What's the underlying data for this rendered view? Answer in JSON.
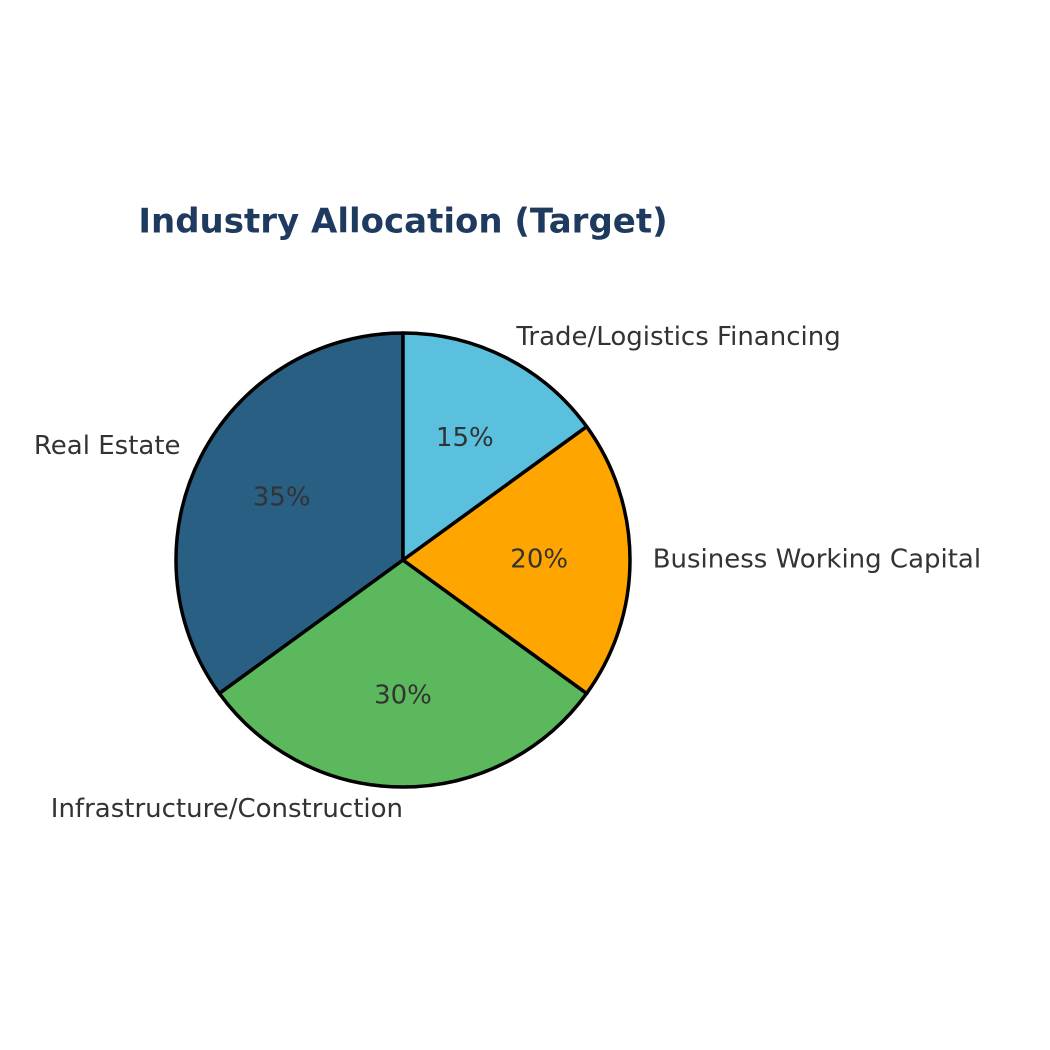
{
  "chart_data": {
    "type": "pie",
    "title": "Industry Allocation (Target)",
    "categories": [
      "Real Estate",
      "Infrastructure/Construction",
      "Business Working Capital",
      "Trade/Logistics Financing"
    ],
    "values": [
      35,
      30,
      20,
      15
    ],
    "value_labels": [
      "35%",
      "30%",
      "20%",
      "15%"
    ],
    "colors": [
      "#2a5f84",
      "#5cb85c",
      "#ffa500",
      "#5bc0de"
    ]
  }
}
